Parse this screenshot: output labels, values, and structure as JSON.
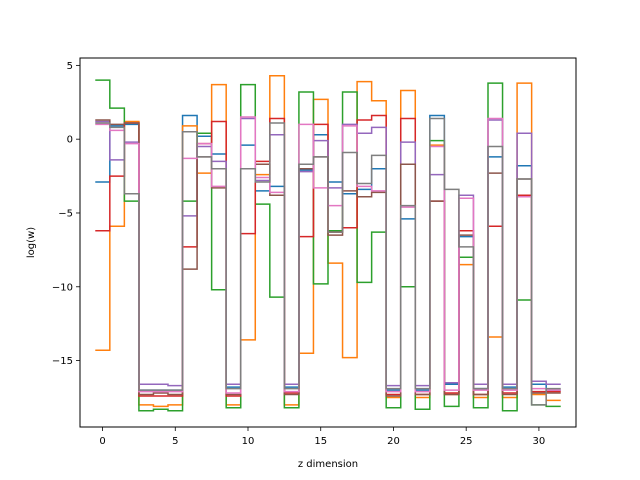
{
  "chart_data": {
    "type": "line",
    "step": true,
    "title": "",
    "xlabel": "z dimension",
    "ylabel": "log(w)",
    "xlim": [
      -1.55,
      32.55
    ],
    "ylim": [
      -19.5,
      5.5
    ],
    "xticks": [
      0,
      5,
      10,
      15,
      20,
      25,
      30
    ],
    "yticks": [
      5,
      0,
      -5,
      -10,
      -15
    ],
    "grid": false,
    "legend": "none",
    "x": [
      0,
      1,
      2,
      3,
      4,
      5,
      6,
      7,
      8,
      9,
      10,
      11,
      12,
      13,
      14,
      15,
      16,
      17,
      18,
      19,
      20,
      21,
      22,
      23,
      24,
      25,
      26,
      27,
      28,
      29,
      30,
      31
    ],
    "series": [
      {
        "color": "#1f77b4",
        "values": [
          -2.9,
          0.9,
          1.0,
          -17.0,
          -17.0,
          -17.0,
          1.6,
          0.2,
          -1.0,
          -16.8,
          -0.4,
          -3.5,
          -3.2,
          -16.8,
          -2.1,
          0.3,
          -2.9,
          -3.7,
          -3.4,
          -2.0,
          -17.0,
          -5.4,
          -17.0,
          1.6,
          -16.6,
          -6.6,
          -16.9,
          -1.2,
          -16.8,
          -1.8,
          -16.6,
          -17.0
        ]
      },
      {
        "color": "#ff7f0e",
        "values": [
          -14.3,
          -5.9,
          1.2,
          -18.0,
          -18.1,
          -18.0,
          0.9,
          -2.3,
          3.7,
          -18.0,
          -13.6,
          -2.4,
          4.3,
          -18.0,
          -14.5,
          2.7,
          -8.4,
          -14.8,
          3.9,
          2.6,
          -17.5,
          3.3,
          -17.5,
          -0.4,
          -17.3,
          -8.5,
          -17.5,
          -13.4,
          -17.5,
          3.8,
          -17.3,
          -17.7
        ]
      },
      {
        "color": "#2ca02c",
        "values": [
          4.0,
          2.1,
          -4.2,
          -18.4,
          -18.3,
          -18.4,
          -4.2,
          0.4,
          -10.2,
          -18.2,
          3.7,
          -4.4,
          -10.7,
          -18.2,
          3.2,
          -9.8,
          -6.2,
          3.2,
          -9.7,
          -6.3,
          -18.2,
          -10.0,
          -18.3,
          -0.1,
          -18.1,
          -8.0,
          -18.2,
          3.8,
          -18.4,
          -10.9,
          -18.0,
          -18.1
        ]
      },
      {
        "color": "#d62728",
        "values": [
          -6.2,
          -2.5,
          1.1,
          -17.4,
          -17.4,
          -17.4,
          -7.3,
          -0.3,
          1.2,
          -17.4,
          -6.4,
          -1.5,
          1.4,
          -17.2,
          -6.6,
          1.0,
          -6.3,
          -6.0,
          1.3,
          1.6,
          -17.3,
          1.4,
          -17.3,
          -4.2,
          -17.2,
          -6.2,
          -17.3,
          -5.9,
          -17.2,
          -3.8,
          -17.1,
          -17.1
        ]
      },
      {
        "color": "#9467bd",
        "values": [
          1.2,
          -1.4,
          -0.2,
          -16.6,
          -16.6,
          -16.7,
          -5.2,
          -0.5,
          -1.5,
          -16.6,
          1.4,
          -2.8,
          0.3,
          -16.6,
          -2.2,
          -0.1,
          -3.3,
          1.0,
          0.4,
          0.8,
          -16.7,
          -0.2,
          -16.7,
          -2.4,
          -16.5,
          -3.8,
          -16.6,
          1.3,
          -16.6,
          0.4,
          -16.4,
          -16.6
        ]
      },
      {
        "color": "#8c564b",
        "values": [
          1.3,
          1.0,
          1.1,
          -17.3,
          -17.2,
          -17.3,
          -8.8,
          -1.2,
          -3.3,
          -17.3,
          -2.0,
          -1.7,
          -3.8,
          -17.3,
          -2.0,
          -1.2,
          -6.5,
          -3.5,
          -3.9,
          -3.6,
          -17.4,
          -1.7,
          -17.3,
          -4.2,
          -17.3,
          -6.5,
          -17.3,
          -2.3,
          -17.3,
          -2.7,
          -17.2,
          -17.2
        ]
      },
      {
        "color": "#e377c2",
        "values": [
          1.0,
          0.6,
          -0.3,
          -17.1,
          -17.1,
          -17.1,
          -1.3,
          -0.3,
          -3.2,
          -17.2,
          1.5,
          -2.6,
          -3.6,
          -17.1,
          1.0,
          -3.3,
          -4.5,
          0.9,
          -3.2,
          -3.5,
          -17.1,
          -4.6,
          -17.1,
          -0.5,
          -17.0,
          -4.0,
          -17.0,
          1.4,
          -17.0,
          -3.9,
          -16.9,
          -17.0
        ]
      },
      {
        "color": "#7f7f7f",
        "values": [
          1.1,
          0.8,
          -3.7,
          -17.0,
          -17.0,
          -17.0,
          0.5,
          -1.2,
          -2.0,
          -16.9,
          -2.0,
          -2.9,
          1.1,
          -16.9,
          -1.7,
          -1.2,
          -6.3,
          -0.9,
          -3.0,
          -1.1,
          -16.9,
          -4.5,
          -16.9,
          1.4,
          -3.4,
          -7.3,
          -16.9,
          -0.5,
          -16.9,
          -2.7,
          -18.0,
          -16.9
        ]
      }
    ]
  }
}
